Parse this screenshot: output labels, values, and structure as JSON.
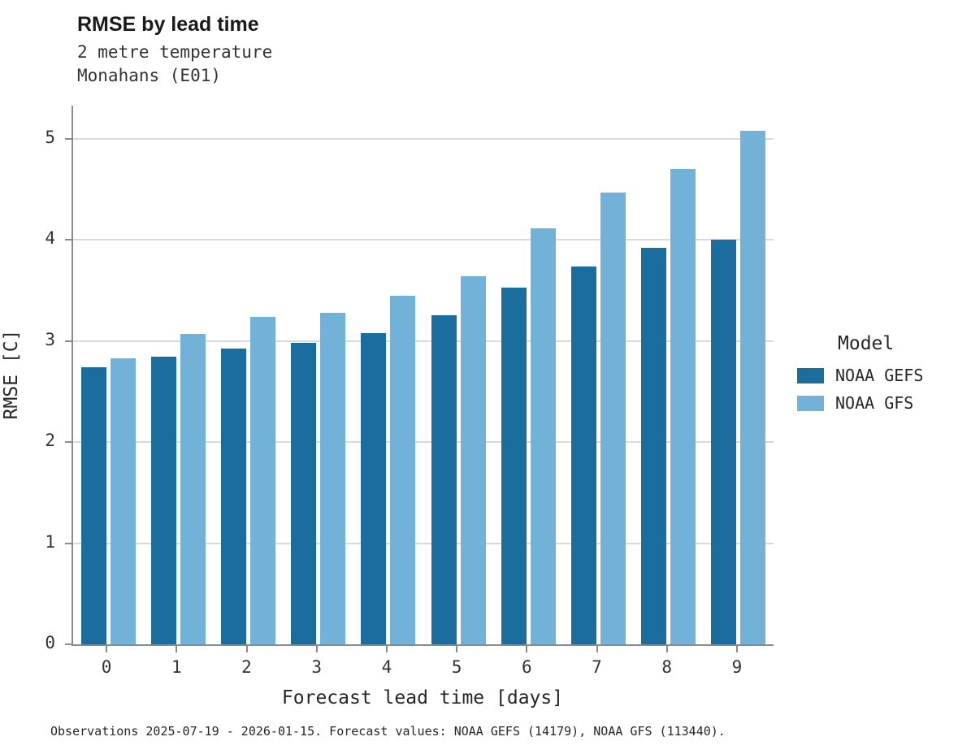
{
  "header": {
    "title": "RMSE by lead time",
    "subtitle1": "2 metre temperature",
    "subtitle2": "Monahans (E01)"
  },
  "footer": {
    "caption": "Observations 2025-07-19 - 2026-01-15. Forecast values: NOAA GEFS (14179), NOAA GFS (113440)."
  },
  "legend": {
    "title": "Model",
    "entries": [
      {
        "label": "NOAA GEFS",
        "color": "#1b6d9e"
      },
      {
        "label": "NOAA GFS",
        "color": "#73b2d8"
      }
    ]
  },
  "chart_data": {
    "type": "bar",
    "title": "RMSE by lead time",
    "subtitle": "2 metre temperature, Monahans (E01)",
    "xlabel": "Forecast lead time [days]",
    "ylabel": "RMSE [C]",
    "categories": [
      "0",
      "1",
      "2",
      "3",
      "4",
      "5",
      "6",
      "7",
      "8",
      "9"
    ],
    "series": [
      {
        "name": "NOAA GEFS",
        "color": "#1b6d9e",
        "values": [
          2.74,
          2.85,
          2.93,
          2.98,
          3.08,
          3.26,
          3.53,
          3.74,
          3.92,
          4.0
        ]
      },
      {
        "name": "NOAA GFS",
        "color": "#73b2d8",
        "values": [
          2.83,
          3.07,
          3.24,
          3.28,
          3.45,
          3.64,
          4.12,
          4.47,
          4.7,
          5.08
        ]
      }
    ],
    "ylim": [
      0,
      5.33
    ],
    "yticks": [
      0,
      1,
      2,
      3,
      4,
      5
    ],
    "grid": true,
    "legend_title": "Model",
    "legend_position": "right"
  }
}
